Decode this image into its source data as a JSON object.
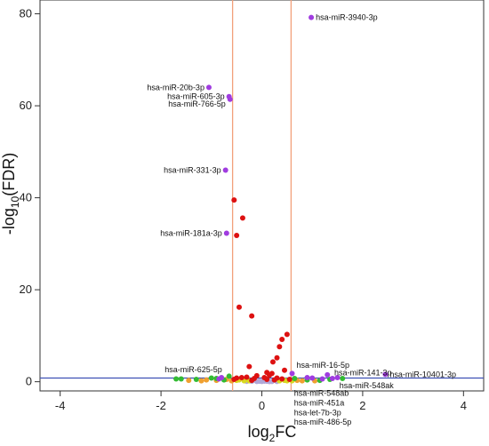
{
  "chart_data": {
    "type": "scatter",
    "title": "",
    "xlabel_main": "log",
    "xlabel_sub": "2",
    "xlabel_tail": "FC",
    "ylabel_head": "-log",
    "ylabel_sub": "10",
    "ylabel_tail": "(FDR)",
    "xlim": [
      -4.4,
      4.4
    ],
    "ylim": [
      -2,
      83
    ],
    "xticks": [
      -4,
      -2,
      0,
      2,
      4
    ],
    "yticks": [
      0,
      20,
      40,
      60,
      80
    ],
    "grid": false,
    "thresholds": {
      "vertical": [
        -0.58,
        0.58
      ],
      "vertical_color": "#f2a07b",
      "horizontal": 0.8,
      "horizontal_color": "#3f51b5"
    },
    "colors": {
      "purple": "#a03ce0",
      "red": "#dd1111",
      "green": "#33bb33",
      "orange": "#f0a030",
      "yellow": "#d8d820",
      "lavender": "#b0a8d8"
    },
    "series": [
      {
        "color": "purple",
        "points": [
          [
            0.98,
            79.2
          ],
          [
            -1.05,
            64
          ],
          [
            -0.65,
            62
          ],
          [
            -0.63,
            61.4
          ],
          [
            -0.72,
            46
          ],
          [
            -0.7,
            32.3
          ],
          [
            0.6,
            1.8
          ],
          [
            1.3,
            1.5
          ],
          [
            2.45,
            1.6
          ],
          [
            1.5,
            0.9
          ],
          [
            1.0,
            0.8
          ],
          [
            0.9,
            0.9
          ],
          [
            -0.8,
            0.9
          ],
          [
            -0.85,
            0.6
          ],
          [
            1.2,
            0.6
          ],
          [
            1.4,
            0.7
          ]
        ]
      },
      {
        "color": "red",
        "points": [
          [
            -0.55,
            39.5
          ],
          [
            -0.38,
            35.6
          ],
          [
            -0.5,
            31.8
          ],
          [
            -0.45,
            16.2
          ],
          [
            -0.2,
            14.3
          ],
          [
            0.5,
            10.3
          ],
          [
            0.4,
            9.2
          ],
          [
            0.35,
            7.6
          ],
          [
            0.3,
            5.2
          ],
          [
            0.22,
            4.3
          ],
          [
            -0.25,
            3.3
          ],
          [
            0.45,
            2.5
          ],
          [
            0.1,
            2.0
          ],
          [
            0.2,
            1.8
          ],
          [
            0.15,
            1.4
          ],
          [
            -0.1,
            1.3
          ],
          [
            -0.3,
            1.0
          ],
          [
            -0.4,
            0.9
          ],
          [
            -0.5,
            0.8
          ],
          [
            0.3,
            0.8
          ],
          [
            0.05,
            0.9
          ],
          [
            -0.15,
            0.7
          ],
          [
            0.4,
            0.6
          ],
          [
            0.55,
            0.5
          ],
          [
            -0.55,
            0.5
          ],
          [
            0.25,
            0.4
          ],
          [
            -0.2,
            0.3
          ],
          [
            0.1,
            0.5
          ]
        ]
      },
      {
        "color": "green",
        "points": [
          [
            -1.6,
            0.6
          ],
          [
            -1.7,
            0.6
          ],
          [
            -1.3,
            0.5
          ],
          [
            -1.0,
            0.8
          ],
          [
            -0.9,
            0.7
          ],
          [
            -0.65,
            1.2
          ],
          [
            0.65,
            0.7
          ],
          [
            0.9,
            0.4
          ],
          [
            1.15,
            0.3
          ],
          [
            1.6,
            0.7
          ],
          [
            1.35,
            0.5
          ],
          [
            -0.75,
            0.4
          ]
        ]
      },
      {
        "color": "orange",
        "points": [
          [
            -1.1,
            0.4
          ],
          [
            -1.2,
            0.2
          ],
          [
            -0.9,
            0.3
          ],
          [
            -0.7,
            0.5
          ],
          [
            0.7,
            0.3
          ],
          [
            0.8,
            0.2
          ],
          [
            1.05,
            0.2
          ],
          [
            -1.45,
            0.3
          ],
          [
            -0.6,
            0.2
          ]
        ]
      },
      {
        "color": "yellow",
        "points": [
          [
            -0.45,
            0.4
          ],
          [
            -0.35,
            0.2
          ],
          [
            -0.25,
            0.2
          ],
          [
            0.35,
            0.2
          ],
          [
            0.45,
            0.3
          ],
          [
            0.5,
            0.2
          ],
          [
            -0.5,
            0.3
          ],
          [
            0.6,
            0.2
          ]
        ]
      },
      {
        "color": "lavender",
        "points": [
          [
            -0.2,
            0.1
          ],
          [
            -0.1,
            0.05
          ],
          [
            0.0,
            0.05
          ],
          [
            0.1,
            0.1
          ],
          [
            0.2,
            0.05
          ],
          [
            -0.3,
            0.08
          ],
          [
            0.3,
            0.06
          ],
          [
            0.05,
            0.12
          ],
          [
            -0.05,
            0.1
          ],
          [
            0.15,
            0.03
          ]
        ]
      }
    ],
    "annotations": [
      {
        "label": "hsa-miR-3940-3p",
        "x": 0.98,
        "y": 79.2,
        "side": "right"
      },
      {
        "label": "hsa-miR-20b-3p",
        "x": -1.05,
        "y": 64,
        "side": "left"
      },
      {
        "label": "hsa-miR-605-3p",
        "x": -0.65,
        "y": 62,
        "side": "left"
      },
      {
        "label": "hsa-miR-766-5p",
        "x": -0.63,
        "y": 60.4,
        "side": "left"
      },
      {
        "label": "hsa-miR-331-3p",
        "x": -0.72,
        "y": 46,
        "side": "left"
      },
      {
        "label": "hsa-miR-181a-3p",
        "x": -0.7,
        "y": 32.3,
        "side": "left"
      },
      {
        "label": "hsa-miR-625-5p",
        "x": -0.7,
        "y": 2.6,
        "side": "left"
      },
      {
        "label": "hsa-miR-16-5p",
        "x": 0.6,
        "y": 3.6,
        "side": "right"
      },
      {
        "label": "hsa-miR-141-3p",
        "x": 1.35,
        "y": 2.0,
        "side": "right"
      },
      {
        "label": "hsa-miR-10401-3p",
        "x": 2.45,
        "y": 1.6,
        "side": "right"
      },
      {
        "label": "hsa-miR-548ak",
        "x": 1.45,
        "y": -0.8,
        "side": "right"
      },
      {
        "label": "hsa-miR-548ab",
        "x": 0.55,
        "y": -2.5,
        "side": "right"
      },
      {
        "label": "hsa-miR-451a",
        "x": 0.55,
        "y": -4.6,
        "side": "right"
      },
      {
        "label": "hsa-let-7b-3p",
        "x": 0.55,
        "y": -6.7,
        "side": "right"
      },
      {
        "label": "hsa-miR-486-5p",
        "x": 0.55,
        "y": -8.8,
        "side": "right"
      }
    ]
  }
}
